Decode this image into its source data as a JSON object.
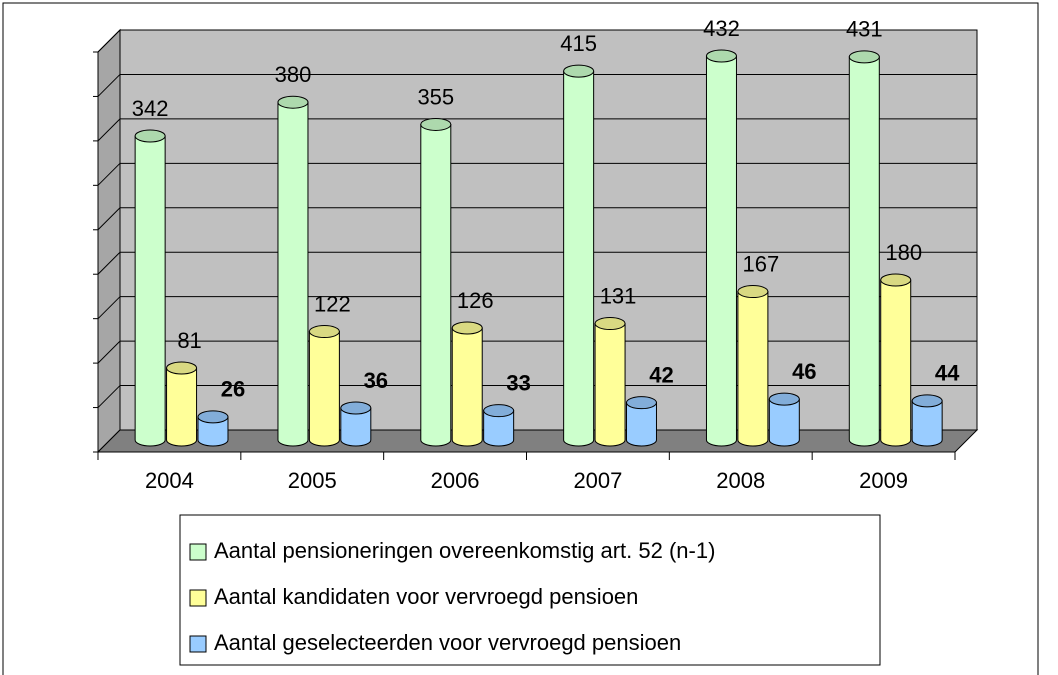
{
  "chart_data": {
    "type": "bar3d",
    "categories": [
      "2004",
      "2005",
      "2006",
      "2007",
      "2008",
      "2009"
    ],
    "series": [
      {
        "name": "Aantal pensioneringen overeenkomstig art. 52 (n-1)",
        "color": "#ccffcc",
        "values": [
          342,
          380,
          355,
          415,
          432,
          431
        ]
      },
      {
        "name": "Aantal kandidaten voor vervroegd pensioen",
        "color": "#ffff99",
        "values": [
          81,
          122,
          126,
          131,
          167,
          180
        ]
      },
      {
        "name": "Aantal geselecteerden voor vervroegd pensioen",
        "color": "#99ccff",
        "values": [
          26,
          36,
          33,
          42,
          46,
          44
        ],
        "bold_labels": true
      }
    ],
    "ylim": [
      0,
      450
    ],
    "yticks": [
      0,
      50,
      100,
      150,
      200,
      250,
      300,
      350,
      400,
      450
    ],
    "grid": true
  }
}
